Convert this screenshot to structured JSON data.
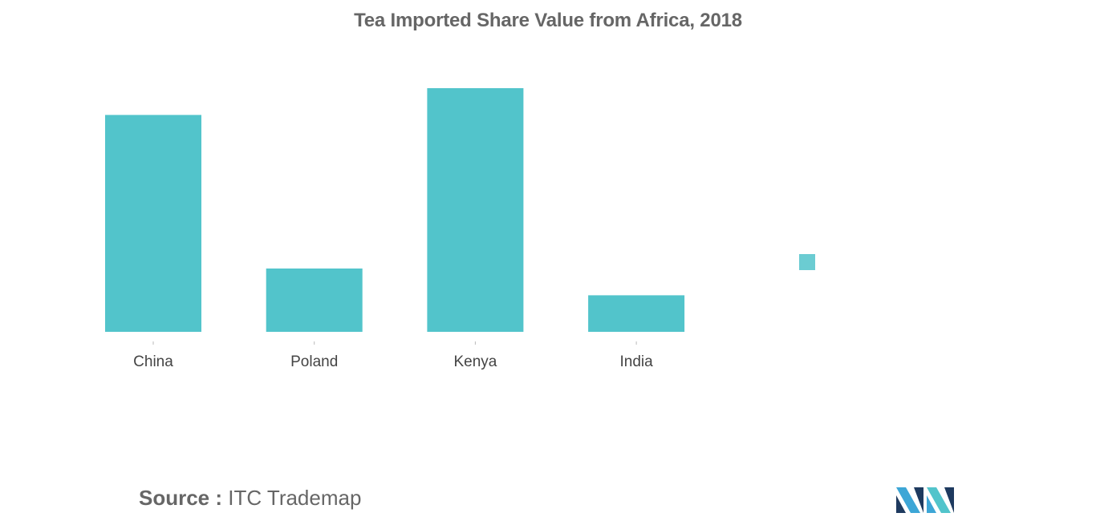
{
  "chart_data": {
    "type": "bar",
    "title": "Tea Imported Share Value from Africa, 2018",
    "categories": [
      "China",
      "Poland",
      "Kenya",
      "India"
    ],
    "values": [
      0.89,
      0.26,
      1.0,
      0.15
    ],
    "legend": {
      "position": "right",
      "items": [
        ""
      ]
    },
    "xlabel": "",
    "ylabel": "",
    "grid": false,
    "bar_color": "#52C4CB",
    "legend_color": "#6BCCD2"
  },
  "source": {
    "label": "Source :",
    "text": "ITC Trademap"
  },
  "logo": {
    "icon": "mordor-intelligence-logo",
    "colors": [
      "#1E3A5F",
      "#3DA6D6",
      "#52C4CB"
    ]
  }
}
